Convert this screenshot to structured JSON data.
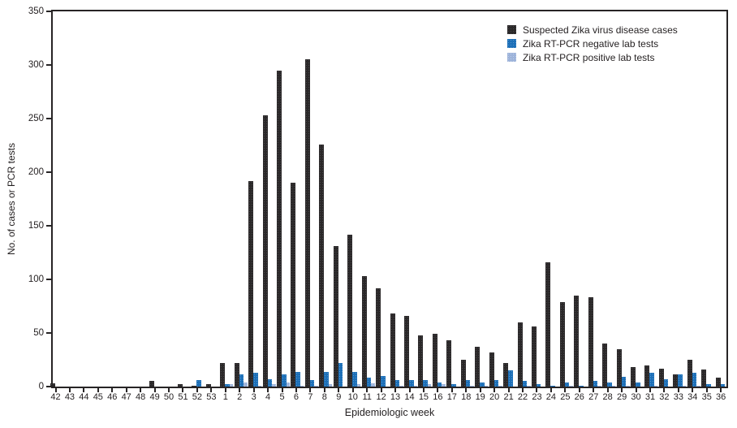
{
  "figure": {
    "y_axis_title": "No. of cases or PCR tests",
    "x_axis_title": "Epidemiologic week"
  },
  "legend": {
    "position": "top-right",
    "items": [
      {
        "key": "suspected",
        "label": "Suspected Zika virus disease cases",
        "color": "#2b2829"
      },
      {
        "key": "negative",
        "label": "Zika RT-PCR negative lab tests",
        "color": "#1c6fb8"
      },
      {
        "key": "positive",
        "label": "Zika RT-PCR positive lab tests",
        "color": "#9db3da"
      }
    ]
  },
  "chart_data": {
    "type": "bar",
    "title": "",
    "xlabel": "Epidemiologic week",
    "ylabel": "No. of cases or PCR tests",
    "ylim": [
      0,
      350
    ],
    "yticks": [
      0,
      50,
      100,
      150,
      200,
      250,
      300,
      350
    ],
    "grid": false,
    "legend_position": "top-right",
    "categories": [
      "42",
      "43",
      "44",
      "45",
      "46",
      "47",
      "48",
      "49",
      "50",
      "51",
      "52",
      "53",
      "1",
      "2",
      "3",
      "4",
      "5",
      "6",
      "7",
      "8",
      "9",
      "10",
      "11",
      "12",
      "13",
      "14",
      "15",
      "16",
      "17",
      "18",
      "19",
      "20",
      "21",
      "22",
      "23",
      "24",
      "25",
      "26",
      "27",
      "28",
      "29",
      "30",
      "31",
      "32",
      "33",
      "34",
      "35",
      "36"
    ],
    "series": [
      {
        "name": "Suspected Zika virus disease cases",
        "color": "#2b2829",
        "values": [
          3,
          0,
          0,
          0,
          0,
          0,
          0,
          5,
          0,
          2,
          1,
          2,
          22,
          22,
          192,
          253,
          295,
          190,
          305,
          226,
          131,
          142,
          103,
          92,
          68,
          66,
          48,
          49,
          43,
          25,
          37,
          32,
          22,
          60,
          56,
          116,
          79,
          85,
          83,
          40,
          35,
          18,
          20,
          17,
          11,
          25,
          16,
          8
        ]
      },
      {
        "name": "Zika RT-PCR negative lab tests",
        "color": "#1c6fb8",
        "values": [
          0,
          0,
          0,
          0,
          0,
          0,
          0,
          0,
          0,
          0,
          6,
          0,
          2,
          11,
          13,
          7,
          11,
          14,
          6,
          14,
          22,
          14,
          8,
          10,
          6,
          6,
          6,
          4,
          2,
          6,
          4,
          6,
          15,
          5,
          2,
          1,
          4,
          1,
          5,
          4,
          9,
          4,
          13,
          7,
          11,
          13,
          2,
          2
        ]
      },
      {
        "name": "Zika RT-PCR positive lab tests",
        "color": "#9db3da",
        "values": [
          0,
          0,
          0,
          0,
          0,
          0,
          0,
          0,
          0,
          0,
          0,
          0,
          2,
          4,
          1,
          2,
          4,
          1,
          1,
          2,
          0,
          2,
          3,
          0,
          1,
          1,
          2,
          2,
          0,
          1,
          1,
          1,
          0,
          1,
          0,
          0,
          1,
          0,
          1,
          1,
          1,
          0,
          1,
          0,
          1,
          1,
          0,
          0
        ]
      }
    ]
  }
}
